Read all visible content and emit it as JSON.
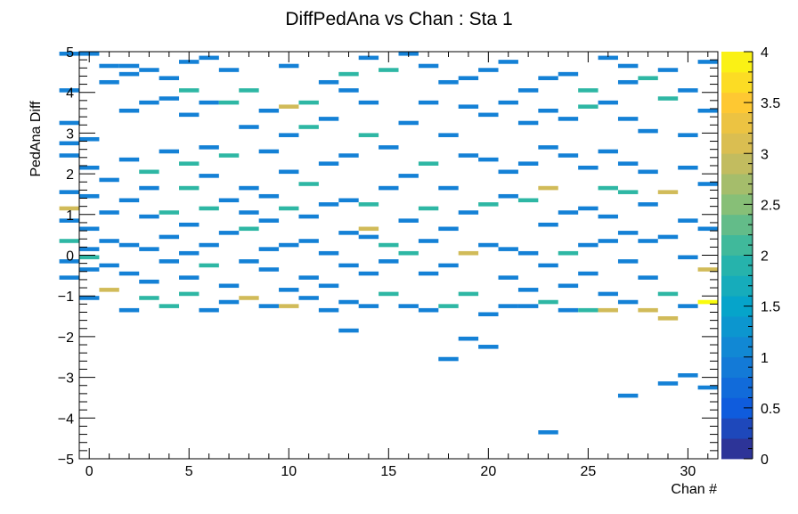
{
  "chart_data": {
    "type": "heatmap",
    "title": "DiffPedAna vs Chan : Sta 1",
    "xlabel": "Chan #",
    "ylabel": "PedAna Diff",
    "xlim": [
      -0.5,
      31.5
    ],
    "ylim": [
      -5,
      5
    ],
    "x_ticks": [
      0,
      5,
      10,
      15,
      20,
      25,
      30
    ],
    "x_tick_labels": [
      "0",
      "5",
      "10",
      "15",
      "20",
      "25",
      "30"
    ],
    "y_ticks": [
      -5,
      -4,
      -3,
      -2,
      -1,
      0,
      1,
      2,
      3,
      4,
      5
    ],
    "y_tick_labels": [
      "−5",
      "−4",
      "−3",
      "−2",
      "−1",
      "0",
      "1",
      "2",
      "3",
      "4",
      "5"
    ],
    "colorbar": {
      "min": 0,
      "max": 4,
      "ticks": [
        0,
        0.5,
        1,
        1.5,
        2,
        2.5,
        3,
        3.5,
        4
      ],
      "tick_labels": [
        "0",
        "0.5",
        "1",
        "1.5",
        "2",
        "2.5",
        "3",
        "3.5",
        "4"
      ],
      "palette": "kBird"
    },
    "bin_height": 0.1,
    "grid": false,
    "legend": "colorbar-right",
    "cells": [
      [
        -1,
        -1,
        -0.6,
        1
      ],
      [
        -1,
        -1,
        0.3,
        2
      ],
      [
        -1,
        -1,
        -0.2,
        1
      ],
      [
        -1,
        -1,
        0.8,
        1
      ],
      [
        -1,
        -1,
        1.1,
        3
      ],
      [
        -1,
        -1,
        1.5,
        1
      ],
      [
        -1,
        -1,
        2.4,
        1
      ],
      [
        -1,
        -1,
        2.7,
        1
      ],
      [
        -1,
        -1,
        3.2,
        1
      ],
      [
        -1,
        -1,
        4.0,
        1
      ],
      [
        -1,
        -1,
        4.9,
        1
      ],
      [
        0,
        0,
        -1.1,
        1
      ],
      [
        0,
        0,
        -0.4,
        1
      ],
      [
        0,
        0,
        -0.1,
        2
      ],
      [
        0,
        0,
        0.1,
        1
      ],
      [
        0,
        0,
        0.6,
        1
      ],
      [
        0,
        0,
        1.4,
        1
      ],
      [
        0,
        0,
        2.1,
        1
      ],
      [
        0,
        0,
        2.8,
        1
      ],
      [
        0,
        0,
        4.9,
        1
      ],
      [
        1,
        1,
        -0.9,
        3
      ],
      [
        1,
        1,
        -0.3,
        1
      ],
      [
        1,
        1,
        0.3,
        1
      ],
      [
        1,
        1,
        1.0,
        1
      ],
      [
        1,
        1,
        1.8,
        1
      ],
      [
        1,
        1,
        4.2,
        1
      ],
      [
        1,
        1,
        4.6,
        1
      ],
      [
        2,
        2,
        -1.4,
        1
      ],
      [
        2,
        2,
        -0.5,
        1
      ],
      [
        2,
        2,
        0.2,
        1
      ],
      [
        2,
        2,
        1.3,
        1
      ],
      [
        2,
        2,
        2.3,
        1
      ],
      [
        2,
        2,
        3.5,
        1
      ],
      [
        2,
        2,
        4.4,
        1
      ],
      [
        2,
        2,
        4.6,
        1
      ],
      [
        3,
        3,
        -1.1,
        2
      ],
      [
        3,
        3,
        -0.7,
        1
      ],
      [
        3,
        3,
        0.1,
        1
      ],
      [
        3,
        3,
        0.9,
        1
      ],
      [
        3,
        3,
        1.6,
        1
      ],
      [
        3,
        3,
        2.0,
        2
      ],
      [
        3,
        3,
        3.7,
        1
      ],
      [
        3,
        3,
        4.5,
        1
      ],
      [
        4,
        4,
        -1.3,
        2
      ],
      [
        4,
        4,
        -0.2,
        1
      ],
      [
        4,
        4,
        0.4,
        1
      ],
      [
        4,
        4,
        1.0,
        2
      ],
      [
        4,
        4,
        2.5,
        1
      ],
      [
        4,
        4,
        3.8,
        1
      ],
      [
        4,
        4,
        4.3,
        1
      ],
      [
        5,
        5,
        -1.0,
        2
      ],
      [
        5,
        5,
        -0.6,
        1
      ],
      [
        5,
        5,
        0.0,
        1
      ],
      [
        5,
        5,
        0.7,
        1
      ],
      [
        5,
        5,
        1.6,
        2
      ],
      [
        5,
        5,
        2.2,
        2
      ],
      [
        5,
        5,
        3.4,
        1
      ],
      [
        5,
        5,
        4.0,
        2
      ],
      [
        5,
        5,
        4.7,
        1
      ],
      [
        6,
        6,
        -1.4,
        1
      ],
      [
        6,
        6,
        -0.3,
        2
      ],
      [
        6,
        6,
        0.2,
        1
      ],
      [
        6,
        6,
        1.1,
        2
      ],
      [
        6,
        6,
        1.9,
        1
      ],
      [
        6,
        6,
        2.6,
        1
      ],
      [
        6,
        6,
        3.7,
        1
      ],
      [
        6,
        6,
        4.8,
        1
      ],
      [
        7,
        7,
        -1.2,
        1
      ],
      [
        7,
        7,
        -0.8,
        1
      ],
      [
        7,
        7,
        0.5,
        1
      ],
      [
        7,
        7,
        1.3,
        1
      ],
      [
        7,
        7,
        2.4,
        2
      ],
      [
        7,
        7,
        3.7,
        2
      ],
      [
        7,
        7,
        4.5,
        1
      ],
      [
        8,
        8,
        -1.1,
        3
      ],
      [
        8,
        8,
        -0.2,
        1
      ],
      [
        8,
        8,
        0.6,
        2
      ],
      [
        8,
        8,
        1.0,
        1
      ],
      [
        8,
        8,
        1.6,
        1
      ],
      [
        8,
        8,
        3.1,
        1
      ],
      [
        8,
        8,
        4.0,
        2
      ],
      [
        9,
        9,
        -1.3,
        1
      ],
      [
        9,
        9,
        -0.4,
        1
      ],
      [
        9,
        9,
        0.1,
        1
      ],
      [
        9,
        9,
        0.8,
        1
      ],
      [
        9,
        9,
        1.4,
        1
      ],
      [
        9,
        9,
        2.5,
        1
      ],
      [
        9,
        9,
        3.5,
        1
      ],
      [
        10,
        10,
        -1.3,
        3
      ],
      [
        10,
        10,
        -0.9,
        1
      ],
      [
        10,
        10,
        0.2,
        1
      ],
      [
        10,
        10,
        1.1,
        2
      ],
      [
        10,
        10,
        2.0,
        1
      ],
      [
        10,
        10,
        2.9,
        1
      ],
      [
        10,
        10,
        3.6,
        3
      ],
      [
        10,
        10,
        4.6,
        1
      ],
      [
        11,
        11,
        -1.1,
        1
      ],
      [
        11,
        11,
        -0.6,
        1
      ],
      [
        11,
        11,
        0.3,
        1
      ],
      [
        11,
        11,
        0.9,
        1
      ],
      [
        11,
        11,
        1.7,
        2
      ],
      [
        11,
        11,
        3.1,
        2
      ],
      [
        11,
        11,
        3.7,
        2
      ],
      [
        12,
        12,
        -1.4,
        1
      ],
      [
        12,
        12,
        -0.8,
        1
      ],
      [
        12,
        12,
        0.0,
        1
      ],
      [
        12,
        12,
        1.2,
        1
      ],
      [
        12,
        12,
        2.2,
        1
      ],
      [
        12,
        12,
        3.3,
        1
      ],
      [
        12,
        12,
        4.2,
        1
      ],
      [
        13,
        13,
        -1.9,
        1
      ],
      [
        13,
        13,
        -1.2,
        1
      ],
      [
        13,
        13,
        -0.3,
        1
      ],
      [
        13,
        13,
        0.5,
        1
      ],
      [
        13,
        13,
        1.3,
        1
      ],
      [
        13,
        13,
        2.4,
        1
      ],
      [
        13,
        13,
        4.0,
        1
      ],
      [
        13,
        13,
        4.4,
        2
      ],
      [
        14,
        14,
        -1.3,
        1
      ],
      [
        14,
        14,
        -0.5,
        1
      ],
      [
        14,
        14,
        0.4,
        1
      ],
      [
        14,
        14,
        0.6,
        3
      ],
      [
        14,
        14,
        1.2,
        2
      ],
      [
        14,
        14,
        2.9,
        2
      ],
      [
        14,
        14,
        3.7,
        1
      ],
      [
        14,
        14,
        4.8,
        1
      ],
      [
        15,
        15,
        -1.0,
        2
      ],
      [
        15,
        15,
        -0.2,
        1
      ],
      [
        15,
        15,
        0.2,
        2
      ],
      [
        15,
        15,
        1.6,
        1
      ],
      [
        15,
        15,
        2.6,
        1
      ],
      [
        15,
        15,
        4.5,
        2
      ],
      [
        16,
        16,
        -1.3,
        1
      ],
      [
        16,
        16,
        0.0,
        2
      ],
      [
        16,
        16,
        0.8,
        1
      ],
      [
        16,
        16,
        1.9,
        1
      ],
      [
        16,
        16,
        3.2,
        1
      ],
      [
        16,
        16,
        4.9,
        1
      ],
      [
        17,
        17,
        -1.4,
        1
      ],
      [
        17,
        17,
        -0.5,
        1
      ],
      [
        17,
        17,
        0.3,
        1
      ],
      [
        17,
        17,
        1.1,
        2
      ],
      [
        17,
        17,
        2.2,
        2
      ],
      [
        17,
        17,
        3.7,
        1
      ],
      [
        17,
        17,
        4.6,
        1
      ],
      [
        18,
        18,
        -2.6,
        1
      ],
      [
        18,
        18,
        -1.3,
        2
      ],
      [
        18,
        18,
        -0.3,
        1
      ],
      [
        18,
        18,
        0.6,
        1
      ],
      [
        18,
        18,
        1.6,
        1
      ],
      [
        18,
        18,
        2.9,
        1
      ],
      [
        18,
        18,
        4.2,
        1
      ],
      [
        19,
        19,
        -2.1,
        1
      ],
      [
        19,
        19,
        -1.0,
        2
      ],
      [
        19,
        19,
        0.0,
        3
      ],
      [
        19,
        19,
        1.0,
        1
      ],
      [
        19,
        19,
        2.4,
        1
      ],
      [
        19,
        19,
        3.6,
        1
      ],
      [
        19,
        19,
        4.3,
        1
      ],
      [
        20,
        20,
        -2.3,
        1
      ],
      [
        20,
        20,
        -1.5,
        1
      ],
      [
        20,
        20,
        0.2,
        1
      ],
      [
        20,
        20,
        1.2,
        2
      ],
      [
        20,
        20,
        2.3,
        1
      ],
      [
        20,
        20,
        3.4,
        1
      ],
      [
        20,
        20,
        4.5,
        1
      ],
      [
        21,
        21,
        -1.3,
        1
      ],
      [
        21,
        21,
        -0.6,
        1
      ],
      [
        21,
        21,
        0.1,
        1
      ],
      [
        21,
        21,
        1.4,
        1
      ],
      [
        21,
        21,
        2.0,
        1
      ],
      [
        21,
        21,
        3.7,
        1
      ],
      [
        21,
        21,
        4.7,
        1
      ],
      [
        22,
        22,
        -1.3,
        1
      ],
      [
        22,
        22,
        -0.9,
        1
      ],
      [
        22,
        22,
        0.0,
        1
      ],
      [
        22,
        22,
        1.3,
        2
      ],
      [
        22,
        22,
        2.2,
        1
      ],
      [
        22,
        22,
        3.2,
        1
      ],
      [
        22,
        22,
        4.0,
        1
      ],
      [
        23,
        23,
        -4.4,
        1
      ],
      [
        23,
        23,
        -1.2,
        2
      ],
      [
        23,
        23,
        -0.3,
        1
      ],
      [
        23,
        23,
        0.7,
        1
      ],
      [
        23,
        23,
        1.6,
        3
      ],
      [
        23,
        23,
        2.6,
        1
      ],
      [
        23,
        23,
        3.5,
        1
      ],
      [
        23,
        23,
        4.3,
        1
      ],
      [
        24,
        24,
        -1.4,
        1
      ],
      [
        24,
        24,
        -0.8,
        1
      ],
      [
        24,
        24,
        0.0,
        2
      ],
      [
        24,
        24,
        1.0,
        1
      ],
      [
        24,
        24,
        2.4,
        1
      ],
      [
        24,
        24,
        3.3,
        1
      ],
      [
        24,
        24,
        4.4,
        1
      ],
      [
        25,
        25,
        -1.4,
        2
      ],
      [
        25,
        25,
        -0.5,
        1
      ],
      [
        25,
        25,
        0.2,
        1
      ],
      [
        25,
        25,
        1.1,
        1
      ],
      [
        25,
        25,
        2.1,
        1
      ],
      [
        25,
        25,
        3.6,
        2
      ],
      [
        25,
        25,
        4.0,
        2
      ],
      [
        26,
        26,
        -1.4,
        3
      ],
      [
        26,
        26,
        -1.0,
        1
      ],
      [
        26,
        26,
        0.3,
        1
      ],
      [
        26,
        26,
        0.9,
        1
      ],
      [
        26,
        26,
        1.6,
        2
      ],
      [
        26,
        26,
        2.5,
        1
      ],
      [
        26,
        26,
        3.7,
        1
      ],
      [
        26,
        26,
        4.8,
        1
      ],
      [
        27,
        27,
        -3.5,
        1
      ],
      [
        27,
        27,
        -1.2,
        1
      ],
      [
        27,
        27,
        -0.2,
        1
      ],
      [
        27,
        27,
        0.5,
        1
      ],
      [
        27,
        27,
        1.5,
        2
      ],
      [
        27,
        27,
        2.2,
        1
      ],
      [
        27,
        27,
        3.3,
        1
      ],
      [
        27,
        27,
        4.2,
        1
      ],
      [
        27,
        27,
        4.6,
        1
      ],
      [
        28,
        28,
        -1.4,
        3
      ],
      [
        28,
        28,
        -0.6,
        1
      ],
      [
        28,
        28,
        0.3,
        1
      ],
      [
        28,
        28,
        1.2,
        1
      ],
      [
        28,
        28,
        2.0,
        1
      ],
      [
        28,
        28,
        3.0,
        1
      ],
      [
        28,
        28,
        4.3,
        2
      ],
      [
        29,
        29,
        -3.2,
        1
      ],
      [
        29,
        29,
        -1.6,
        3
      ],
      [
        29,
        29,
        -1.0,
        2
      ],
      [
        29,
        29,
        0.4,
        1
      ],
      [
        29,
        29,
        1.5,
        3
      ],
      [
        29,
        29,
        3.8,
        2
      ],
      [
        29,
        29,
        4.5,
        1
      ],
      [
        30,
        30,
        -3.0,
        1
      ],
      [
        30,
        30,
        -1.3,
        1
      ],
      [
        30,
        30,
        -0.1,
        1
      ],
      [
        30,
        30,
        0.8,
        1
      ],
      [
        30,
        30,
        2.1,
        1
      ],
      [
        30,
        30,
        2.9,
        1
      ],
      [
        30,
        30,
        4.0,
        1
      ],
      [
        31,
        31,
        -3.3,
        1
      ],
      [
        31,
        31,
        -1.2,
        4
      ],
      [
        31,
        31,
        -0.4,
        3
      ],
      [
        31,
        31,
        0.6,
        1
      ],
      [
        31,
        31,
        1.7,
        1
      ],
      [
        31,
        31,
        3.5,
        1
      ],
      [
        31,
        31,
        4.7,
        1
      ]
    ]
  }
}
